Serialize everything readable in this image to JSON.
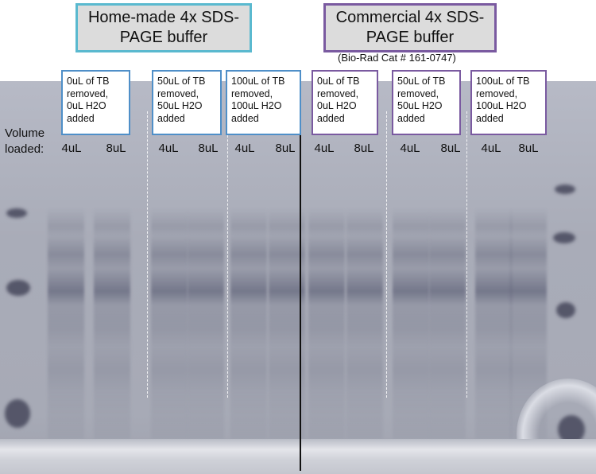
{
  "headers": {
    "homemade": "Home-made 4x SDS-PAGE buffer",
    "commercial": "Commercial 4x SDS-PAGE buffer",
    "catalog": "(Bio-Rad Cat # 161-0747)"
  },
  "conditions": [
    {
      "text": "0uL of TB\nremoved,\n0uL H2O\nadded"
    },
    {
      "text": "50uL of TB\nremoved,\n50uL H2O\nadded"
    },
    {
      "text": "100uL of TB\nremoved,\n100uL H2O\nadded"
    },
    {
      "text": "0uL of TB\nremoved,\n0uL H2O\nadded"
    },
    {
      "text": "50uL of TB\nremoved,\n50uL H2O\nadded"
    },
    {
      "text": "100uL of TB\nremoved,\n100uL H2O\nadded"
    }
  ],
  "volume_label": "Volume\nloaded:",
  "lanes": [
    "4uL",
    "8uL",
    "4uL",
    "8uL",
    "4uL",
    "8uL",
    "4uL",
    "8uL",
    "4uL",
    "8uL",
    "4uL",
    "8uL"
  ],
  "colors": {
    "homemade_border": "#5ab9cf",
    "homemade_label_border": "#4f8fc8",
    "commercial_border": "#7a5aa0"
  }
}
